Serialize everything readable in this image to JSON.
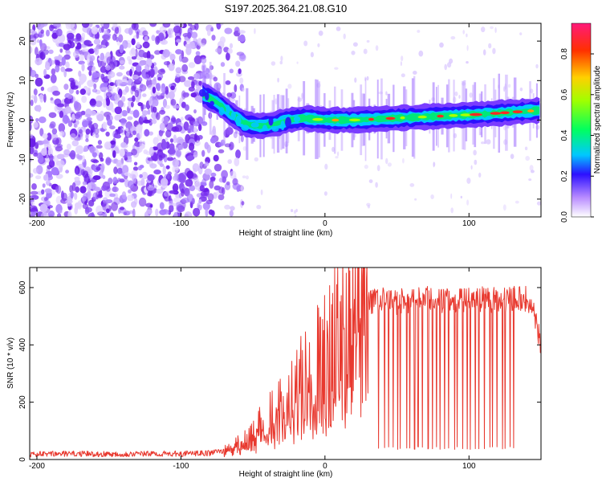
{
  "title": "S197.2025.364.21.08.G10",
  "chart_data": [
    {
      "type": "heatmap",
      "xlabel": "Height of straight line (km)",
      "ylabel": "Frequency (Hz)",
      "xlim": [
        -205,
        150
      ],
      "ylim": [
        -24.5,
        24.5
      ],
      "xticks": [
        -200,
        -100,
        0,
        100
      ],
      "yticks": [
        -20,
        -10,
        0,
        10,
        20
      ],
      "noise_region_x": [
        -205,
        -57
      ],
      "noise_cutoff_x": -57,
      "ridge": [
        {
          "x": -85,
          "freq": 6.5
        },
        {
          "x": -75,
          "freq": 4.5
        },
        {
          "x": -65,
          "freq": 1.5
        },
        {
          "x": -55,
          "freq": -1.0
        },
        {
          "x": -45,
          "freq": -1.5
        },
        {
          "x": -35,
          "freq": -1.0
        },
        {
          "x": -25,
          "freq": 0.0
        },
        {
          "x": -15,
          "freq": 0.5
        },
        {
          "x": 0,
          "freq": 0.0
        },
        {
          "x": 20,
          "freq": 0.0
        },
        {
          "x": 50,
          "freq": 0.5
        },
        {
          "x": 80,
          "freq": 1.0
        },
        {
          "x": 110,
          "freq": 1.5
        },
        {
          "x": 150,
          "freq": 2.5
        }
      ],
      "colorbar": {
        "label": "Normalized spectral amplitude",
        "range": [
          0.0,
          0.95
        ],
        "ticks": [
          0.0,
          0.2,
          0.4,
          0.6,
          0.8
        ]
      }
    },
    {
      "type": "line",
      "xlabel": "Height of straight line (km)",
      "ylabel": "SNR (10 * v/v)",
      "xlim": [
        -205,
        150
      ],
      "ylim": [
        0,
        670
      ],
      "xticks": [
        -200,
        -100,
        0,
        100
      ],
      "yticks": [
        0,
        200,
        400,
        600
      ],
      "color": "#e8392f",
      "series": [
        {
          "name": "SNR",
          "x": [
            -205,
            -180,
            -150,
            -120,
            -100,
            -80,
            -70,
            -60,
            -55,
            -50,
            -45,
            -40,
            -35,
            -30,
            -25,
            -20,
            -15,
            -10,
            -5,
            0,
            5,
            10,
            15,
            20,
            25,
            30,
            40,
            50,
            60,
            70,
            80,
            90,
            100,
            110,
            120,
            130,
            140,
            145,
            150
          ],
          "values": [
            18,
            20,
            19,
            20,
            20,
            22,
            32,
            55,
            70,
            95,
            120,
            150,
            170,
            195,
            230,
            255,
            290,
            315,
            350,
            390,
            420,
            455,
            500,
            520,
            540,
            550,
            555,
            550,
            555,
            560,
            555,
            552,
            555,
            560,
            555,
            560,
            560,
            520,
            390
          ]
        }
      ],
      "dropouts": {
        "x_range": [
          38,
          132
        ],
        "floor": 35,
        "count": 32
      }
    }
  ]
}
